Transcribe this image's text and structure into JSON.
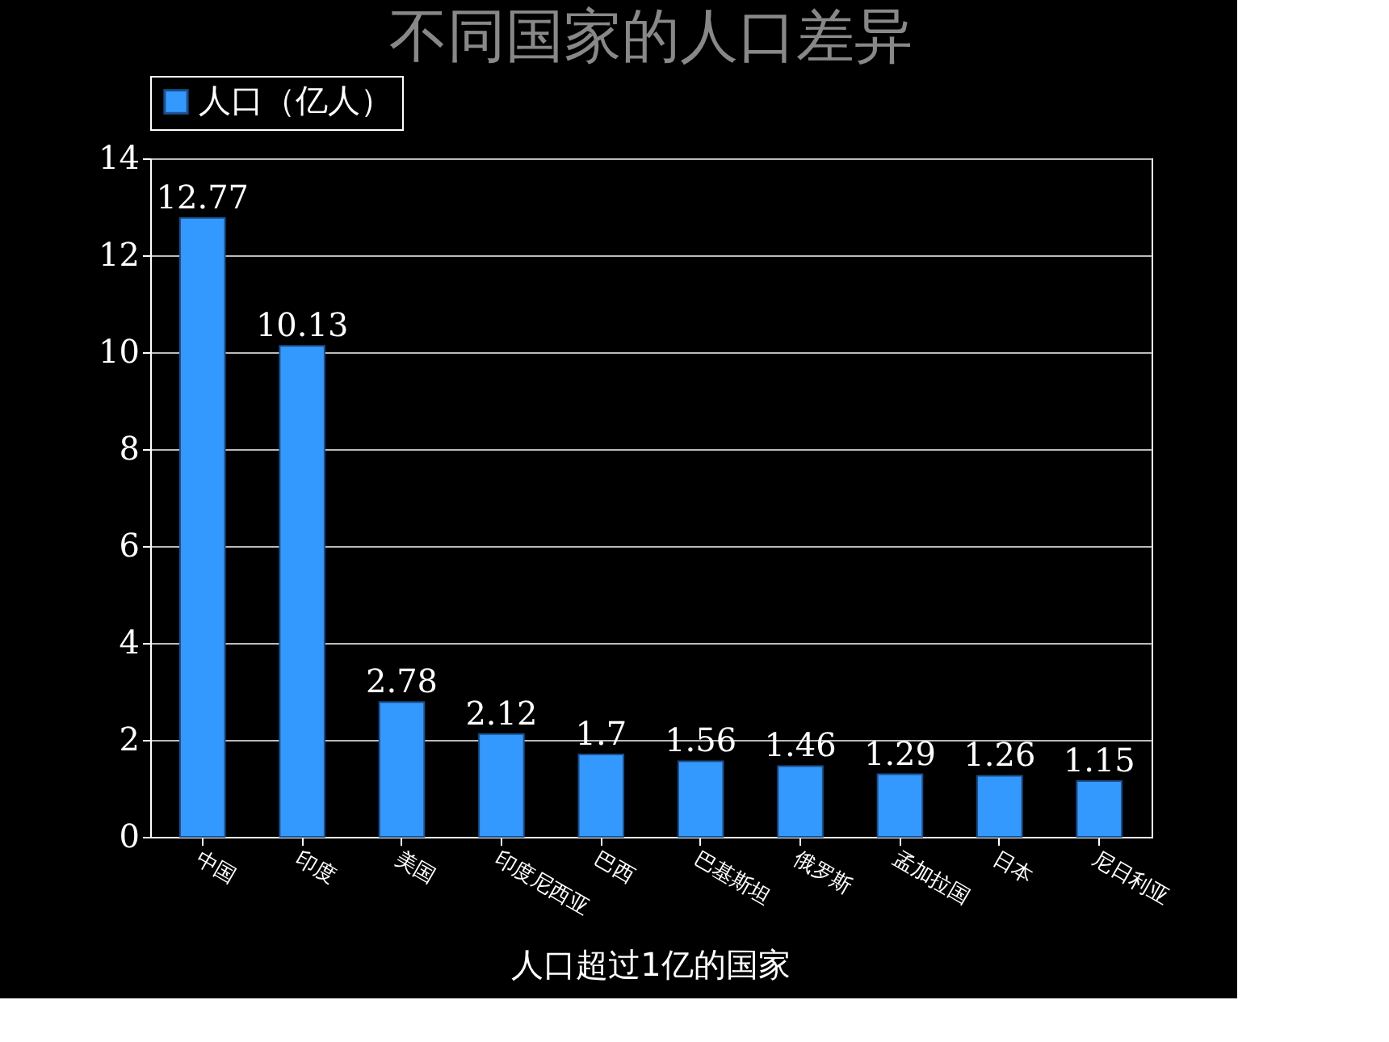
{
  "chart_data": {
    "type": "bar",
    "title": "不同国家的人口差异",
    "categories": [
      "中国",
      "印度",
      "美国",
      "印度尼西亚",
      "巴西",
      "巴基斯坦",
      "俄罗斯",
      "孟加拉国",
      "日本",
      "尼日利亚"
    ],
    "series": [
      {
        "name": "人口（亿人）",
        "color": "#3399ff",
        "values": [
          12.77,
          10.13,
          2.78,
          2.12,
          1.7,
          1.56,
          1.46,
          1.29,
          1.26,
          1.15
        ]
      }
    ],
    "ylim": [
      0,
      14
    ],
    "yticks": [
      0,
      2,
      4,
      6,
      8,
      10,
      12,
      14
    ],
    "grid": "y",
    "legend": "top",
    "data_labels": true,
    "annotations": [
      "人口超过1亿的国家"
    ]
  }
}
